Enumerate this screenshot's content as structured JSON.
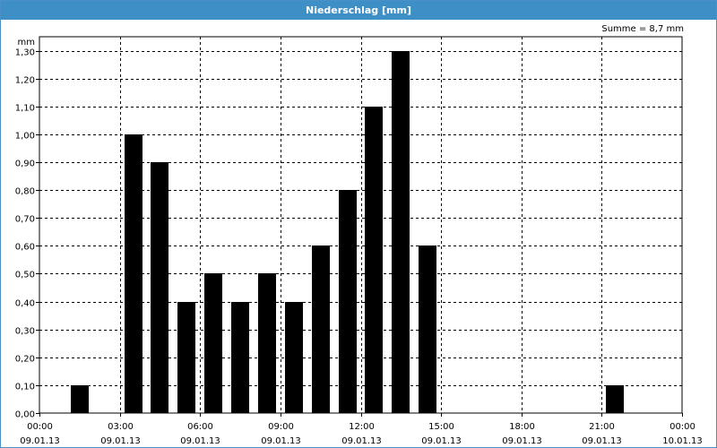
{
  "window": {
    "title": "Niederschlag [mm]"
  },
  "summary": "Summe = 8,7 mm",
  "chart_data": {
    "type": "bar",
    "title": "Niederschlag [mm]",
    "ylabel": "mm",
    "xlabel": "",
    "ylim": [
      0,
      1.35
    ],
    "yticks": [
      "0,00",
      "0,10",
      "0,20",
      "0,30",
      "0,40",
      "0,50",
      "0,60",
      "0,70",
      "0,80",
      "0,90",
      "1,00",
      "1,10",
      "1,20",
      "1,30"
    ],
    "xticks": [
      {
        "time": "00:00",
        "date": "09.01.13"
      },
      {
        "time": "03:00",
        "date": "09.01.13"
      },
      {
        "time": "06:00",
        "date": "09.01.13"
      },
      {
        "time": "09:00",
        "date": "09.01.13"
      },
      {
        "time": "12:00",
        "date": "09.01.13"
      },
      {
        "time": "15:00",
        "date": "09.01.13"
      },
      {
        "time": "18:00",
        "date": "09.01.13"
      },
      {
        "time": "21:00",
        "date": "09.01.13"
      },
      {
        "time": "00:00",
        "date": "10.01.13"
      }
    ],
    "x_range_hours": [
      0,
      24
    ],
    "bar_interval_hours": 1,
    "bars": [
      {
        "start_hour": 1,
        "value": 0.1
      },
      {
        "start_hour": 3,
        "value": 1.0
      },
      {
        "start_hour": 4,
        "value": 0.9
      },
      {
        "start_hour": 5,
        "value": 0.4
      },
      {
        "start_hour": 6,
        "value": 0.5
      },
      {
        "start_hour": 7,
        "value": 0.4
      },
      {
        "start_hour": 8,
        "value": 0.5
      },
      {
        "start_hour": 9,
        "value": 0.4
      },
      {
        "start_hour": 10,
        "value": 0.6
      },
      {
        "start_hour": 11,
        "value": 0.8
      },
      {
        "start_hour": 12,
        "value": 1.1
      },
      {
        "start_hour": 13,
        "value": 1.3
      },
      {
        "start_hour": 14,
        "value": 0.6
      },
      {
        "start_hour": 21,
        "value": 0.1
      }
    ],
    "grid": true,
    "colors": {
      "bar": "#000000",
      "titlebar": "#3f8fc7"
    }
  }
}
